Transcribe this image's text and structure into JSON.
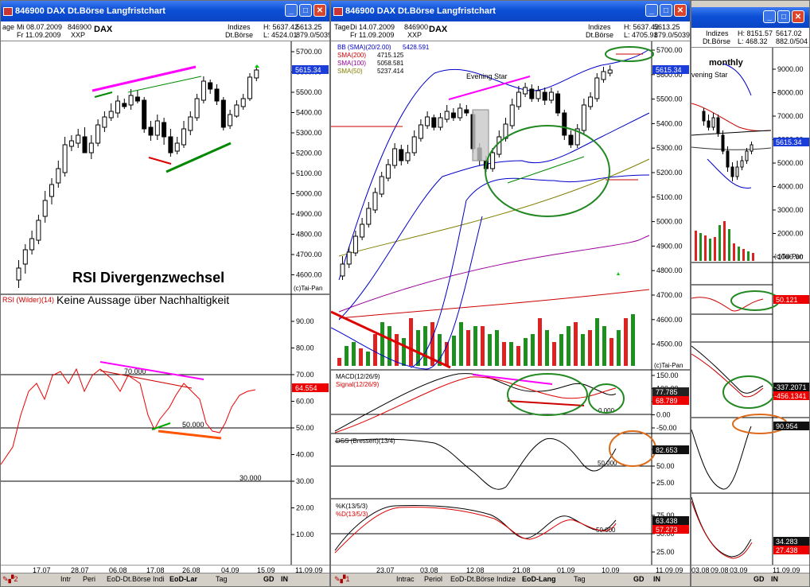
{
  "windows": {
    "left": {
      "title": "846900 DAX Dt.Börse Langfristchart",
      "info": {
        "lbl1": "age",
        "date1": "Mi 08.07.2009",
        "date2": "Fr 11.09.2009",
        "code": "846900",
        "exch": "XXP",
        "name": "DAX",
        "type": "Indizes",
        "exchange": "Dt.Börse",
        "high": "H: 5637.42",
        "low": "L: 4524.01",
        "last": "5613.25",
        "vol": "879.0/5039"
      },
      "price_ticks": [
        "5700.00",
        "5600.00",
        "5500.00",
        "5400.00",
        "5300.00",
        "5200.00",
        "5100.00",
        "5000.00",
        "4900.00",
        "4800.00",
        "4700.00",
        "4600.00"
      ],
      "price_marker": "5615.34",
      "watermark": "(c)Tai-Pan",
      "heading1": "RSI Divergenzwechsel",
      "heading2": "Keine Aussage über Nachhaltigkeit",
      "rsi_label": "RSI (Wilder)(14)",
      "rsi_ticks": [
        "90.00",
        "80.00",
        "70.00",
        "60.00",
        "50.00",
        "40.00",
        "30.00",
        "20.00",
        "10.00"
      ],
      "rsi_levels": [
        "70.000",
        "50.000",
        "30.000"
      ],
      "rsi_marker": "64.554",
      "xlabels": [
        "17.07",
        "28.07",
        "06.08",
        "17.08",
        "26.08",
        "04.09",
        "15.09",
        "11.09.09"
      ],
      "tabs": [
        "Intr",
        "Peri",
        "EoD-Dt.Börse Indi",
        "EoD-Lar",
        "Tag"
      ],
      "gd": "GD",
      "in": "IN"
    },
    "middle": {
      "title": "846900 DAX Dt.Börse Langfristchart",
      "info": {
        "lbl1": "Tage",
        "date1": "Di 14.07.2009",
        "date2": "Fr 11.09.2009",
        "code": "846900",
        "exch": "XXP",
        "name": "DAX",
        "type": "Indizes",
        "exchange": "Dt.Börse",
        "high": "H: 5637.42",
        "low": "L: 4705.91",
        "last": "5613.25",
        "vol": "879.0/5039"
      },
      "legend": [
        {
          "name": "BB (SMA)(20/2.00)",
          "value": "5428.591",
          "color": "#0000cc"
        },
        {
          "name": "SMA(200)",
          "value": "4715.125",
          "color": "#cc0000"
        },
        {
          "name": "SMA(100)",
          "value": "5058.581",
          "color": "#990099"
        },
        {
          "name": "SMA(50)",
          "value": "5237.414",
          "color": "#808000"
        }
      ],
      "annotation": "Evening Star",
      "price_ticks": [
        "5700.00",
        "5600.00",
        "5500.00",
        "5400.00",
        "5300.00",
        "5200.00",
        "5100.00",
        "5000.00",
        "4900.00",
        "4800.00",
        "4700.00",
        "4600.00",
        "4500.00"
      ],
      "price_marker": "5615.34",
      "watermark": "(c)Tai-Pan",
      "macd_label": "MACD(12/26/9)",
      "macd_signal_label": "Signal(12/26/9)",
      "macd_ticks": [
        "150.00",
        "100.00",
        "50.00",
        "0.00",
        "-50.00"
      ],
      "macd_markers": [
        "77.785",
        "68.789"
      ],
      "macd_zero": "0.000",
      "dss_label": "DSS (Bressert)(13/4)",
      "dss_ticks": [
        "75.00",
        "50.00",
        "25.00"
      ],
      "dss_level": "50.000",
      "dss_marker": "82.653",
      "k_label": "%K(13/5/3)",
      "d_label": "%D(13/5/3)",
      "k_ticks": [
        "75.00",
        "50.00",
        "25.00"
      ],
      "k_level": "50.000",
      "k_markers": [
        "63.438",
        "57.273"
      ],
      "xlabels": [
        "23.07",
        "03.08",
        "12.08",
        "21.08",
        "01.09",
        "10.09",
        "11.09.09"
      ],
      "tabs": [
        "Intrac",
        "Periol",
        "EoD-Dt.Börse Indize",
        "EoD-Lang",
        "Tag"
      ],
      "gd": "GD",
      "in": "IN"
    },
    "right": {
      "info": {
        "type": "Indizes",
        "exchange": "Dt.Börse",
        "high": "H: 8151.57",
        "low": "L: 468.32",
        "last": "5617.02",
        "vol": "882.0/504"
      },
      "label": "monthly",
      "annotation": "vening Star",
      "price_ticks": [
        "9000.00",
        "8000.00",
        "7000.00",
        "6000.00",
        "5000.00",
        "4000.00",
        "3000.00",
        "2000.00",
        "1000.00"
      ],
      "price_marker": "5615.34",
      "watermark": "(c)Tai-Pan",
      "rsi_ticks": [
        "75.00",
        "25.00"
      ],
      "rsi_marker": "50.121",
      "macd_ticks": [
        "750.00",
        "250.00",
        "0.00",
        "-750.00"
      ],
      "macd_markers": [
        "-337.2071",
        "-456.1341"
      ],
      "dss_ticks": [
        "50.00",
        "25.00"
      ],
      "dss_marker": "90.954",
      "k_ticks": [
        "75.00",
        "50.00",
        "25.00"
      ],
      "k_markers": [
        "34.283",
        "27.438"
      ],
      "xlabels": [
        "03.08",
        "09.08",
        "03.09",
        "11.09.09"
      ],
      "gd": "GD",
      "in": "IN"
    }
  }
}
